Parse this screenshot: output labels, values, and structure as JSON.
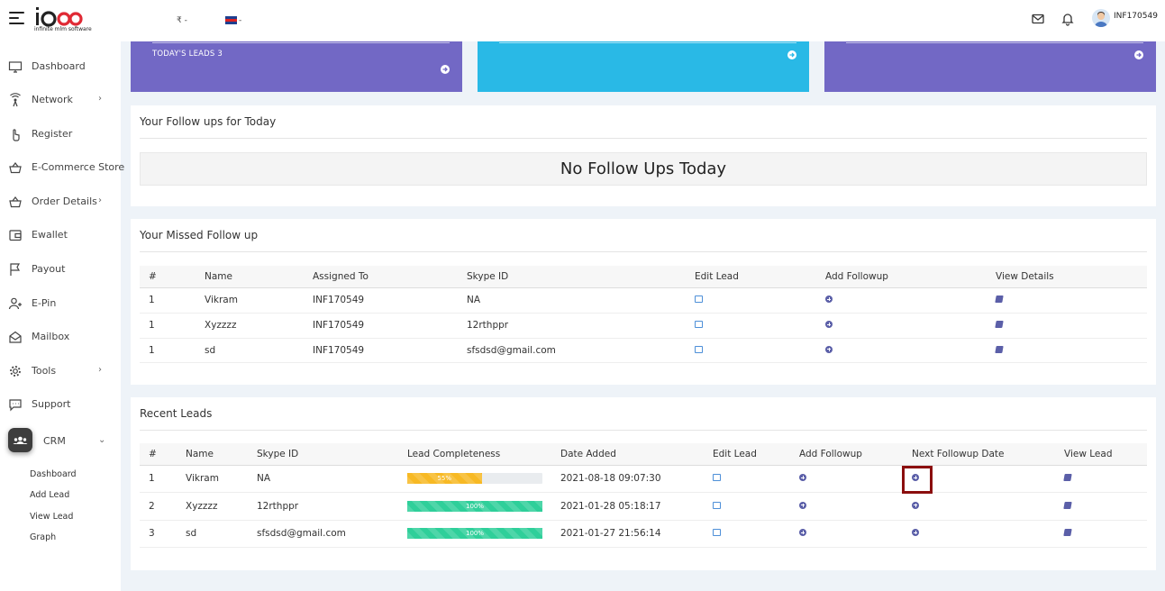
{
  "header": {
    "logo_text": "infinite mlm software",
    "currency": "₹ -",
    "language": "-",
    "username": "INF170549"
  },
  "sidebar": {
    "items": [
      {
        "label": "Dashboard",
        "icon": "monitor-icon"
      },
      {
        "label": "Network",
        "icon": "network-icon",
        "chevron": "›"
      },
      {
        "label": "Register",
        "icon": "register-hand-icon"
      },
      {
        "label": "E-Commerce Store",
        "icon": "basket-icon"
      },
      {
        "label": "Order Details",
        "icon": "basket-icon",
        "chevron": "›"
      },
      {
        "label": "Ewallet",
        "icon": "wallet-icon"
      },
      {
        "label": "Payout",
        "icon": "flag-icon"
      },
      {
        "label": "E-Pin",
        "icon": "user-plus-icon"
      },
      {
        "label": "Mailbox",
        "icon": "envelope-open-icon"
      },
      {
        "label": "Tools",
        "icon": "gear-icon",
        "chevron": "›"
      },
      {
        "label": "Support",
        "icon": "chat-icon"
      },
      {
        "label": "CRM",
        "icon": "crm-group-icon",
        "chevron": "⌄"
      }
    ],
    "crm_sub": [
      "Dashboard",
      "Add Lead",
      "View Lead",
      "Graph"
    ]
  },
  "cards": [
    {
      "text": "TODAY'S LEADS 3",
      "color": "#7268c5"
    },
    {
      "text": "",
      "color": "#29b9e6"
    },
    {
      "text": "",
      "color": "#7268c5"
    }
  ],
  "followups_today": {
    "title": "Your Follow ups for Today",
    "empty_message": "No Follow Ups Today"
  },
  "missed_followups": {
    "title": "Your Missed Follow up",
    "columns": [
      "#",
      "Name",
      "Assigned To",
      "Skype ID",
      "Edit Lead",
      "Add Followup",
      "View Details"
    ],
    "rows": [
      {
        "num": "1",
        "name": "Vikram",
        "assigned": "INF170549",
        "skype": "NA"
      },
      {
        "num": "1",
        "name": "Xyzzzz",
        "assigned": "INF170549",
        "skype": "12rthppr"
      },
      {
        "num": "1",
        "name": "sd",
        "assigned": "INF170549",
        "skype": "sfsdsd@gmail.com"
      }
    ]
  },
  "recent_leads": {
    "title": "Recent Leads",
    "columns": [
      "#",
      "Name",
      "Skype ID",
      "Lead Completeness",
      "Date Added",
      "Edit Lead",
      "Add Followup",
      "Next Followup Date",
      "View Lead"
    ],
    "rows": [
      {
        "num": "1",
        "name": "Vikram",
        "skype": "NA",
        "completeness": 55,
        "completeness_label": "55%",
        "bar_color": "#f7b924",
        "date": "2021-08-18 09:07:30"
      },
      {
        "num": "2",
        "name": "Xyzzzz",
        "skype": "12rthppr",
        "completeness": 100,
        "completeness_label": "100%",
        "bar_color": "#2fcf9a",
        "date": "2021-01-28 05:18:17"
      },
      {
        "num": "3",
        "name": "sd",
        "skype": "sfsdsd@gmail.com",
        "completeness": 100,
        "completeness_label": "100%",
        "bar_color": "#2fcf9a",
        "date": "2021-01-27 21:56:14"
      }
    ]
  }
}
